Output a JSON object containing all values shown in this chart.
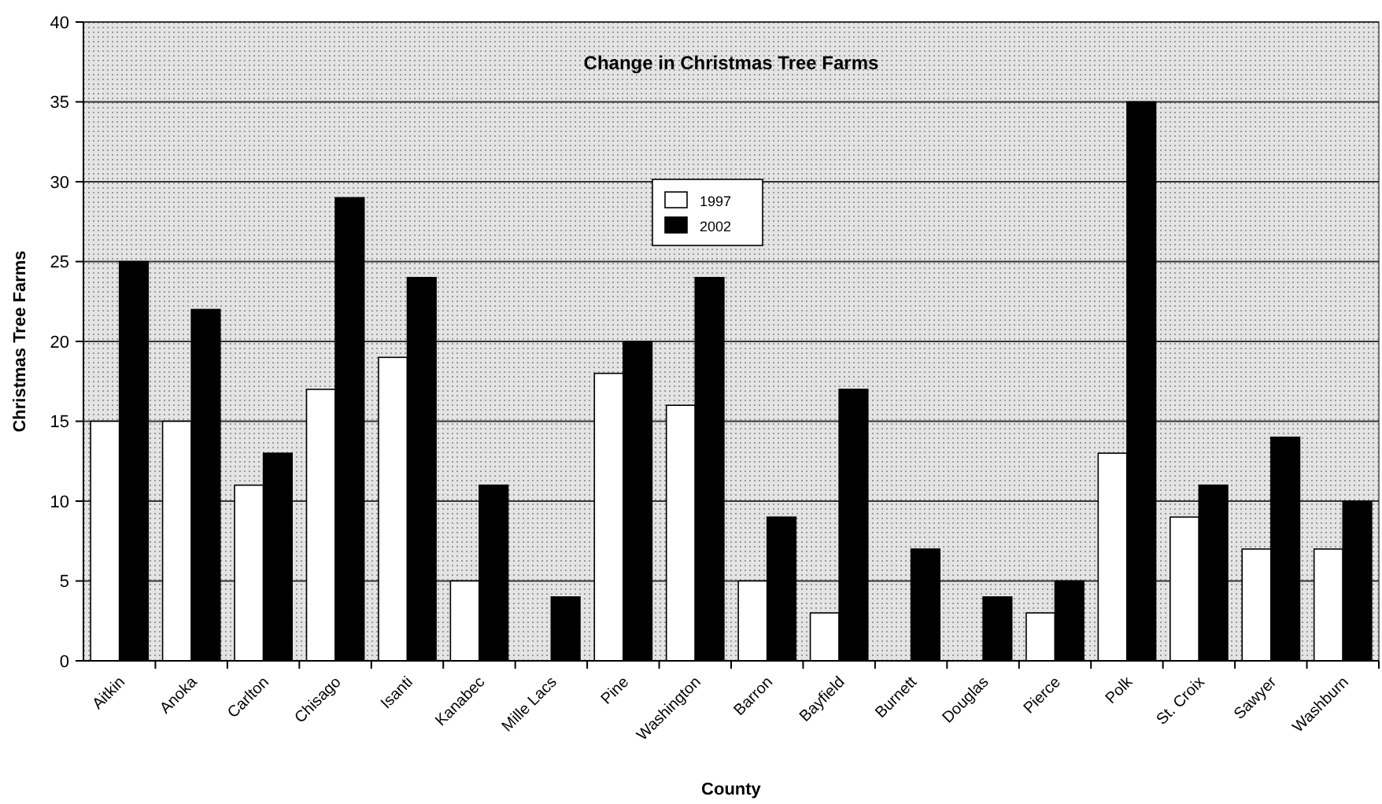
{
  "chart_data": {
    "type": "bar",
    "title": "Change in Christmas Tree Farms",
    "xlabel": "County",
    "ylabel": "Christmas Tree Farms",
    "categories": [
      "Aitkin",
      "Anoka",
      "Carlton",
      "Chisago",
      "Isanti",
      "Kanabec",
      "Mille Lacs",
      "Pine",
      "Washington",
      "Barron",
      "Bayfield",
      "Burnett",
      "Douglas",
      "Pierce",
      "Polk",
      "St. Croix",
      "Sawyer",
      "Washburn"
    ],
    "series": [
      {
        "name": "1997",
        "color": "#ffffff",
        "values": [
          15,
          15,
          11,
          17,
          19,
          5,
          0,
          18,
          16,
          5,
          3,
          0,
          0,
          3,
          13,
          9,
          7,
          7
        ]
      },
      {
        "name": "2002",
        "color": "#000000",
        "values": [
          25,
          22,
          13,
          29,
          24,
          11,
          4,
          20,
          24,
          9,
          17,
          7,
          4,
          5,
          35,
          11,
          14,
          10
        ]
      }
    ],
    "ylim": [
      0,
      40
    ],
    "yticks": [
      0,
      5,
      10,
      15,
      20,
      25,
      30,
      35,
      40
    ],
    "grid": "y",
    "legend": "top"
  }
}
